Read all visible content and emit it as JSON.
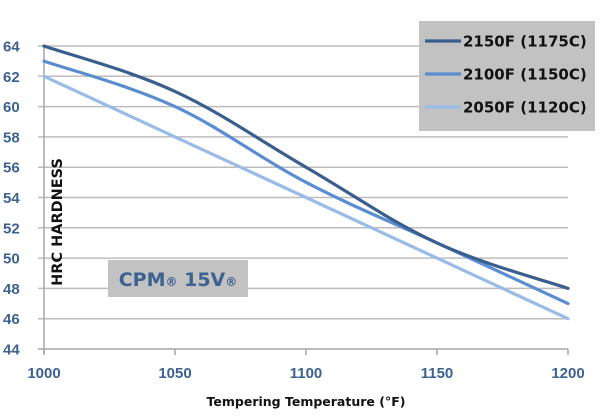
{
  "chart_data": {
    "type": "line",
    "title": "",
    "xlabel": "Tempering Temperature (°F)",
    "ylabel": "HRC HARDNESS",
    "x": [
      1000,
      1050,
      1100,
      1150,
      1200
    ],
    "xlim": [
      1000,
      1200
    ],
    "ylim": [
      44,
      64
    ],
    "x_ticks": [
      1000,
      1050,
      1100,
      1150,
      1200
    ],
    "y_ticks": [
      44,
      46,
      48,
      50,
      52,
      54,
      56,
      58,
      60,
      62,
      64
    ],
    "x_tick_labels": [
      "1000",
      "1050",
      "1100",
      "1150",
      "1200"
    ],
    "y_tick_labels": [
      "44",
      "46",
      "48",
      "50",
      "52",
      "54",
      "56",
      "58",
      "60",
      "62",
      "64"
    ],
    "grid": "horizontal",
    "legend_position": "top-right",
    "annotation": {
      "main": "CPM",
      "reg1": "®",
      "grade": " 15V",
      "reg2": "®"
    },
    "series": [
      {
        "name": "2150F (1175C)",
        "color": "#3a5f8f",
        "values": [
          64,
          61,
          56,
          51,
          48
        ]
      },
      {
        "name": "2100F (1150C)",
        "color": "#5b8ed1",
        "values": [
          63,
          60,
          55,
          51,
          47
        ]
      },
      {
        "name": "2050F (1120C)",
        "color": "#99bce6",
        "values": [
          62,
          58,
          54,
          50,
          46
        ]
      }
    ]
  },
  "colors": {
    "tick_text": "#3d6291",
    "grid": "#bdbdbd",
    "legend_bg": "#c2c2c2",
    "annotation_bg": "#c2c2c2"
  }
}
